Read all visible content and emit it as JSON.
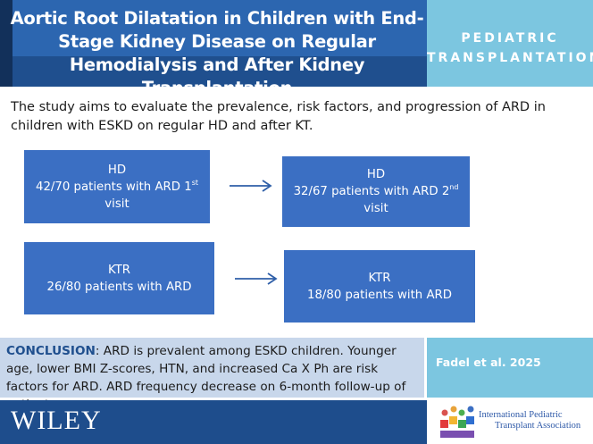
{
  "header": {
    "title": "Aortic Root Dilatation in Children with End-Stage Kidney Disease on Regular Hemodialysis and After Kidney Transplantation",
    "journal_line1": "PEDIATRIC",
    "journal_line2": "TRANSPLANTATION"
  },
  "aim": "The study aims to evaluate the prevalence, risk factors, and progression of ARD in children with ESKD on regular HD and after KT.",
  "boxes": [
    {
      "group": "HD",
      "text": "42/70 patients with ARD 1",
      "sup": "st",
      "tail": "visit"
    },
    {
      "group": "HD",
      "text": "32/67 patients with ARD 2",
      "sup": "nd",
      "tail": "visit"
    },
    {
      "group": "KTR",
      "text": "26/80 patients with ARD"
    },
    {
      "group": "KTR",
      "text": "18/80 patients with ARD"
    }
  ],
  "conclusion": {
    "label": "CONCLUSION",
    "text": ": ARD is prevalent among ESKD children. Younger age, lower BMI Z-scores, HTN, and increased Ca X Ph are risk factors for ARD.  ARD frequency decrease on 6-month follow-up of patients."
  },
  "citation": "Fadel et al. 2025",
  "footer": {
    "publisher": "WILEY",
    "association_line1": "International Pediatric",
    "association_line2": "Transplant Association"
  },
  "colors": {
    "header_blue": "#2c66b0",
    "box_blue": "#3b6fc3",
    "light_blue": "#7cc6e0",
    "conclusion_bg": "#c8d7eb",
    "footer_blue": "#1e4d8c"
  }
}
